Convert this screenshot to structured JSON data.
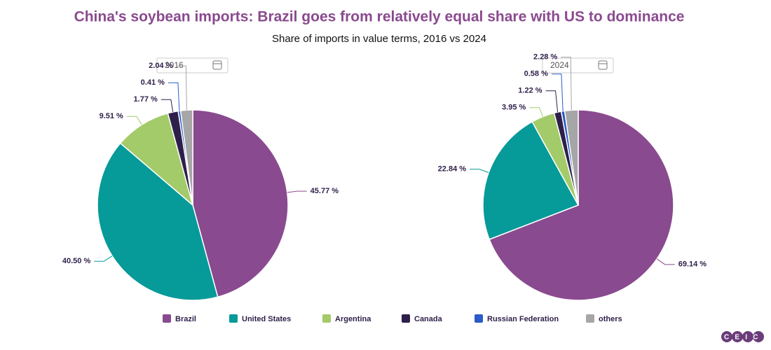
{
  "title": "China's soybean imports: Brazil goes from relatively equal share with US to dominance",
  "subtitle": "Share of imports in value terms, 2016 vs 2024",
  "logo": "CEIC",
  "chart_data": [
    {
      "type": "pie",
      "title": "2016",
      "categories": [
        "Brazil",
        "United States",
        "Argentina",
        "Canada",
        "Russian Federation",
        "others"
      ],
      "values": [
        45.77,
        40.5,
        9.51,
        1.77,
        0.41,
        2.04
      ],
      "value_labels": [
        "45.77 %",
        "40.50 %",
        "9.51 %",
        "1.77 %",
        "0.41 %",
        "2.04 %"
      ],
      "colors": [
        "#8a4a8f",
        "#069a99",
        "#a3cb6a",
        "#2e1f4a",
        "#2a5bc9",
        "#a6a6a6"
      ]
    },
    {
      "type": "pie",
      "title": "2024",
      "categories": [
        "Brazil",
        "United States",
        "Argentina",
        "Canada",
        "Russian Federation",
        "others"
      ],
      "values": [
        69.14,
        22.84,
        3.95,
        1.22,
        0.58,
        2.28
      ],
      "value_labels": [
        "69.14 %",
        "22.84 %",
        "3.95 %",
        "1.22 %",
        "0.58 %",
        "2.28 %"
      ],
      "colors": [
        "#8a4a8f",
        "#069a99",
        "#a3cb6a",
        "#2e1f4a",
        "#2a5bc9",
        "#a6a6a6"
      ]
    }
  ]
}
